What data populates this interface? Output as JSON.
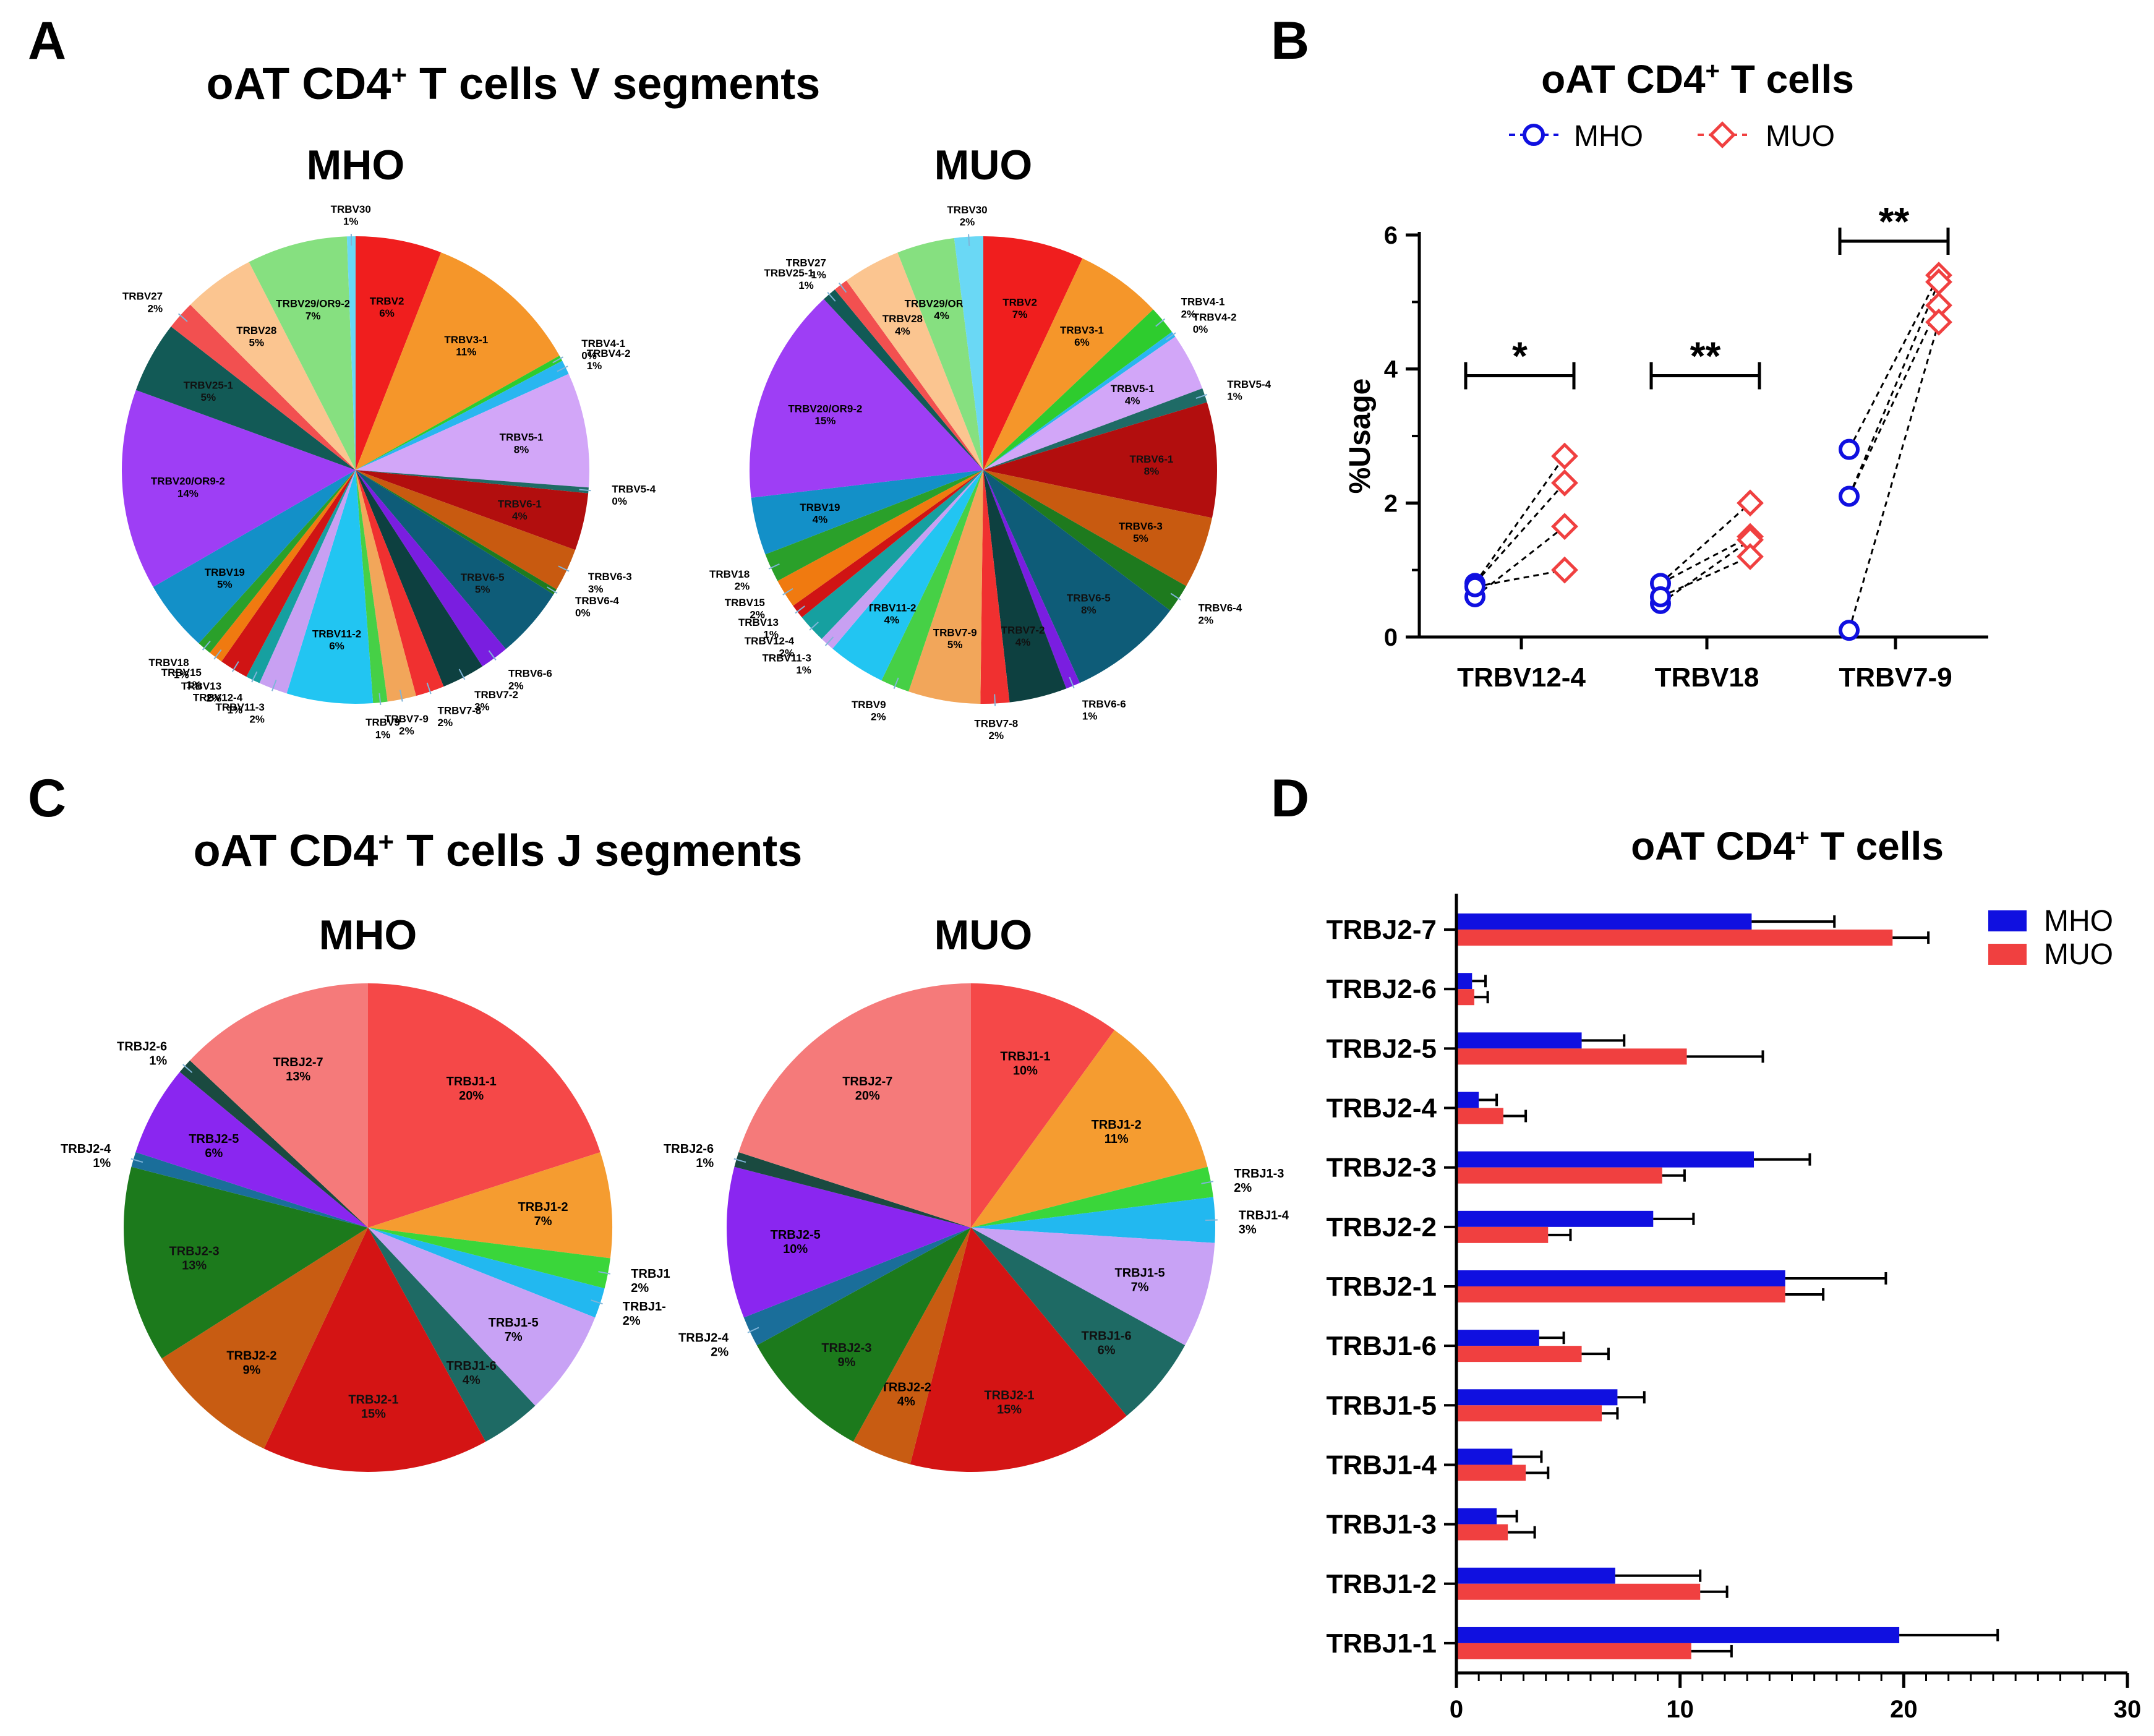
{
  "panels": {
    "A": {
      "label": "A",
      "title": "oAT CD4",
      "title_sup": "+",
      "title_rest": " T cells V segments"
    },
    "B": {
      "label": "B",
      "title": "oAT CD4",
      "title_sup": "+",
      "title_rest": " T cells"
    },
    "C": {
      "label": "C",
      "title": "oAT CD4",
      "title_sup": "+",
      "title_rest": " T cells J segments"
    },
    "D": {
      "label": "D",
      "title": "oAT CD4",
      "title_sup": "+",
      "title_rest": " T cells"
    }
  },
  "groups": {
    "mho": "MHO",
    "muo": "MUO"
  },
  "colors": {
    "mho": "#1010e0",
    "muo": "#f04040"
  },
  "chart_data": [
    {
      "id": "A-MHO",
      "type": "pie",
      "title": "MHO",
      "slices": [
        {
          "name": "TRBV2",
          "pct": "6%",
          "value": 6,
          "color": "#f01e1e"
        },
        {
          "name": "TRBV3-1",
          "pct": "11%",
          "value": 11,
          "color": "#f5962a"
        },
        {
          "name": "TRBV4-1",
          "pct": "0%",
          "value": 0.4,
          "color": "#2ecc2e"
        },
        {
          "name": "TRBV4-2",
          "pct": "1%",
          "value": 1,
          "color": "#29b6f0"
        },
        {
          "name": "TRBV5-1",
          "pct": "8%",
          "value": 8,
          "color": "#d2a6f8"
        },
        {
          "name": "TRBV5-4",
          "pct": "0%",
          "value": 0.4,
          "color": "#1f6b66"
        },
        {
          "name": "TRBV6-1",
          "pct": "4%",
          "value": 4,
          "color": "#b20e0e"
        },
        {
          "name": "TRBV6-3",
          "pct": "3%",
          "value": 3,
          "color": "#c85a10"
        },
        {
          "name": "TRBV6-4",
          "pct": "0%",
          "value": 0.4,
          "color": "#1e7a1e"
        },
        {
          "name": "TRBV6-5",
          "pct": "5%",
          "value": 5,
          "color": "#0e5c78"
        },
        {
          "name": "TRBV6-6",
          "pct": "2%",
          "value": 2,
          "color": "#7a1ee0"
        },
        {
          "name": "TRBV7-2",
          "pct": "3%",
          "value": 3,
          "color": "#0d4040"
        },
        {
          "name": "TRBV7-8",
          "pct": "2%",
          "value": 2,
          "color": "#f03030"
        },
        {
          "name": "TRBV7-9",
          "pct": "2%",
          "value": 2,
          "color": "#f2a65a"
        },
        {
          "name": "TRBV9",
          "pct": "1%",
          "value": 1,
          "color": "#46d046"
        },
        {
          "name": "TRBV11-2",
          "pct": "6%",
          "value": 6,
          "color": "#22c5f2"
        },
        {
          "name": "TRBV11-3",
          "pct": "2%",
          "value": 2,
          "color": "#c8a0f2"
        },
        {
          "name": "TRBV12-4",
          "pct": "1%",
          "value": 1,
          "color": "#16a0a0"
        },
        {
          "name": "TRBV13",
          "pct": "2%",
          "value": 2,
          "color": "#d01414"
        },
        {
          "name": "TRBV15",
          "pct": "1%",
          "value": 1,
          "color": "#f07a10"
        },
        {
          "name": "TRBV18",
          "pct": "1%",
          "value": 1,
          "color": "#2aa02a"
        },
        {
          "name": "TRBV19",
          "pct": "5%",
          "value": 5,
          "color": "#1390c8"
        },
        {
          "name": "TRBV20/OR9-2",
          "pct": "14%",
          "value": 14,
          "color": "#9e3ef5"
        },
        {
          "name": "TRBV25-1",
          "pct": "5%",
          "value": 5,
          "color": "#125a56"
        },
        {
          "name": "TRBV27",
          "pct": "2%",
          "value": 2,
          "color": "#f25050"
        },
        {
          "name": "TRBV28",
          "pct": "5%",
          "value": 5,
          "color": "#fbc590"
        },
        {
          "name": "TRBV29/OR9-2",
          "pct": "7%",
          "value": 7,
          "color": "#86e080"
        },
        {
          "name": "TRBV30",
          "pct": "1%",
          "value": 0.6,
          "color": "#6ad8f5"
        }
      ]
    },
    {
      "id": "A-MUO",
      "type": "pie",
      "title": "MUO",
      "slices": [
        {
          "name": "TRBV2",
          "pct": "7%",
          "value": 7,
          "color": "#f01e1e"
        },
        {
          "name": "TRBV3-1",
          "pct": "6%",
          "value": 6,
          "color": "#f5962a"
        },
        {
          "name": "TRBV4-1",
          "pct": "2%",
          "value": 2,
          "color": "#2ecc2e"
        },
        {
          "name": "TRBV4-2",
          "pct": "0%",
          "value": 0.4,
          "color": "#29b6f0"
        },
        {
          "name": "TRBV5-1",
          "pct": "4%",
          "value": 4,
          "color": "#d2a6f8"
        },
        {
          "name": "TRBV5-4",
          "pct": "1%",
          "value": 1,
          "color": "#1f6b66"
        },
        {
          "name": "TRBV6-1",
          "pct": "8%",
          "value": 8,
          "color": "#b20e0e"
        },
        {
          "name": "TRBV6-3",
          "pct": "5%",
          "value": 5,
          "color": "#c85a10"
        },
        {
          "name": "TRBV6-4",
          "pct": "2%",
          "value": 2,
          "color": "#1e7a1e"
        },
        {
          "name": "TRBV6-5",
          "pct": "8%",
          "value": 8,
          "color": "#0e5c78"
        },
        {
          "name": "TRBV6-6",
          "pct": "1%",
          "value": 1,
          "color": "#7a1ee0"
        },
        {
          "name": "TRBV7-2",
          "pct": "4%",
          "value": 4,
          "color": "#0d4040"
        },
        {
          "name": "TRBV7-8",
          "pct": "2%",
          "value": 2,
          "color": "#f03030"
        },
        {
          "name": "TRBV7-9",
          "pct": "5%",
          "value": 5,
          "color": "#f2a65a"
        },
        {
          "name": "TRBV9",
          "pct": "2%",
          "value": 2,
          "color": "#46d046"
        },
        {
          "name": "TRBV11-2",
          "pct": "4%",
          "value": 4,
          "color": "#22c5f2"
        },
        {
          "name": "TRBV11-3",
          "pct": "1%",
          "value": 1,
          "color": "#c8a0f2"
        },
        {
          "name": "TRBV12-4",
          "pct": "2%",
          "value": 2,
          "color": "#16a0a0"
        },
        {
          "name": "TRBV13",
          "pct": "1%",
          "value": 1,
          "color": "#d01414"
        },
        {
          "name": "TRBV15",
          "pct": "2%",
          "value": 2,
          "color": "#f07a10"
        },
        {
          "name": "TRBV18",
          "pct": "2%",
          "value": 2,
          "color": "#2aa02a"
        },
        {
          "name": "TRBV19",
          "pct": "4%",
          "value": 4,
          "color": "#1390c8"
        },
        {
          "name": "TRBV20/OR9-2",
          "pct": "15%",
          "value": 15,
          "color": "#9e3ef5"
        },
        {
          "name": "TRBV25-1",
          "pct": "1%",
          "value": 1,
          "color": "#125a56"
        },
        {
          "name": "TRBV27",
          "pct": "1%",
          "value": 1,
          "color": "#f25050"
        },
        {
          "name": "TRBV28",
          "pct": "4%",
          "value": 4,
          "color": "#fbc590"
        },
        {
          "name": "TRBV29/OR9-2",
          "pct": "4%",
          "value": 4,
          "color": "#86e080"
        },
        {
          "name": "TRBV30",
          "pct": "2%",
          "value": 2,
          "color": "#6ad8f5"
        }
      ]
    },
    {
      "id": "B",
      "type": "scatter",
      "title": "oAT CD4+ T cells",
      "xlabel": "",
      "ylabel": "%Usage",
      "ylim": [
        0,
        6
      ],
      "yticks": [
        0,
        2,
        4,
        6
      ],
      "categories": [
        "TRBV12-4",
        "TRBV18",
        "TRBV7-9"
      ],
      "series": [
        {
          "name": "MHO",
          "values": [
            [
              0.8,
              0.6,
              0.75
            ],
            [
              0.8,
              0.5,
              0.6
            ],
            [
              2.8,
              2.1,
              0.1
            ]
          ]
        },
        {
          "name": "MUO",
          "values": [
            [
              2.7,
              2.3,
              1.65,
              1.0
            ],
            [
              2.0,
              1.5,
              1.45,
              1.2
            ],
            [
              5.4,
              5.3,
              4.95,
              4.7
            ]
          ]
        }
      ],
      "pairs": [
        [
          [
            0,
            0
          ],
          [
            0,
            1
          ],
          [
            1,
            2
          ],
          [
            2,
            3
          ]
        ],
        [
          [
            0,
            0
          ],
          [
            0,
            1
          ],
          [
            1,
            2
          ],
          [
            2,
            3
          ]
        ],
        [
          [
            0,
            0
          ],
          [
            1,
            1
          ],
          [
            1,
            2
          ],
          [
            2,
            3
          ]
        ]
      ],
      "significance": [
        "*",
        "**",
        "**"
      ]
    },
    {
      "id": "C-MHO",
      "type": "pie",
      "title": "MHO",
      "slices": [
        {
          "name": "TRBJ1-1",
          "pct": "20%",
          "value": 20,
          "color": "#f54848"
        },
        {
          "name": "TRBJ1-2",
          "pct": "7%",
          "value": 7,
          "color": "#f59c30"
        },
        {
          "name": "TRBJ1",
          "pct": "2%",
          "value": 2,
          "color": "#3ad63a"
        },
        {
          "name": "TRBJ1-",
          "pct": "2%",
          "value": 2,
          "color": "#22b8f0"
        },
        {
          "name": "TRBJ1-5",
          "pct": "7%",
          "value": 7,
          "color": "#c8a2f5"
        },
        {
          "name": "TRBJ1-6",
          "pct": "4%",
          "value": 4,
          "color": "#1e6a64"
        },
        {
          "name": "TRBJ2-1",
          "pct": "15%",
          "value": 15,
          "color": "#d41414"
        },
        {
          "name": "TRBJ2-2",
          "pct": "9%",
          "value": 9,
          "color": "#c85c12"
        },
        {
          "name": "TRBJ2-3",
          "pct": "13%",
          "value": 13,
          "color": "#1c7a1c"
        },
        {
          "name": "TRBJ2-4",
          "pct": "1%",
          "value": 1,
          "color": "#1a6e9a"
        },
        {
          "name": "TRBJ2-5",
          "pct": "6%",
          "value": 6,
          "color": "#8a26f0"
        },
        {
          "name": "TRBJ2-6",
          "pct": "1%",
          "value": 1,
          "color": "#1a4a40"
        },
        {
          "name": "TRBJ2-7",
          "pct": "13%",
          "value": 13,
          "color": "#f57a7a"
        }
      ]
    },
    {
      "id": "C-MUO",
      "type": "pie",
      "title": "MUO",
      "slices": [
        {
          "name": "TRBJ1-1",
          "pct": "10%",
          "value": 10,
          "color": "#f54848"
        },
        {
          "name": "TRBJ1-2",
          "pct": "11%",
          "value": 11,
          "color": "#f59c30"
        },
        {
          "name": "TRBJ1-3",
          "pct": "2%",
          "value": 2,
          "color": "#3ad63a"
        },
        {
          "name": "TRBJ1-4",
          "pct": "3%",
          "value": 3,
          "color": "#22b8f0"
        },
        {
          "name": "TRBJ1-5",
          "pct": "7%",
          "value": 7,
          "color": "#c8a2f5"
        },
        {
          "name": "TRBJ1-6",
          "pct": "6%",
          "value": 6,
          "color": "#1e6a64"
        },
        {
          "name": "TRBJ2-1",
          "pct": "15%",
          "value": 15,
          "color": "#d41414"
        },
        {
          "name": "TRBJ2-2",
          "pct": "4%",
          "value": 4,
          "color": "#c85c12"
        },
        {
          "name": "TRBJ2-3",
          "pct": "9%",
          "value": 9,
          "color": "#1c7a1c"
        },
        {
          "name": "TRBJ2-4",
          "pct": "2%",
          "value": 2,
          "color": "#1a6e9a"
        },
        {
          "name": "TRBJ2-5",
          "pct": "10%",
          "value": 10,
          "color": "#8a26f0"
        },
        {
          "name": "TRBJ2-6",
          "pct": "1%",
          "value": 1,
          "color": "#1a4a40"
        },
        {
          "name": "TRBJ2-7",
          "pct": "20%",
          "value": 20,
          "color": "#f57a7a"
        }
      ]
    },
    {
      "id": "D",
      "type": "bar",
      "orientation": "horizontal",
      "title": "oAT CD4+ T cells",
      "xlim": [
        0,
        30
      ],
      "xticks": [
        0,
        10,
        20,
        30
      ],
      "categories": [
        "TRBJ2-7",
        "TRBJ2-6",
        "TRBJ2-5",
        "TRBJ2-4",
        "TRBJ2-3",
        "TRBJ2-2",
        "TRBJ2-1",
        "TRBJ1-6",
        "TRBJ1-5",
        "TRBJ1-4",
        "TRBJ1-3",
        "TRBJ1-2",
        "TRBJ1-1"
      ],
      "series": [
        {
          "name": "MHO",
          "values": [
            13.2,
            0.7,
            5.6,
            1.0,
            13.3,
            8.8,
            14.7,
            3.7,
            7.2,
            2.5,
            1.8,
            7.1,
            19.8
          ],
          "errors": [
            3.7,
            0.6,
            1.9,
            0.8,
            2.5,
            1.8,
            4.5,
            1.1,
            1.2,
            1.3,
            0.9,
            3.8,
            4.4
          ]
        },
        {
          "name": "MUO",
          "values": [
            19.5,
            0.8,
            10.3,
            2.1,
            9.2,
            4.1,
            14.7,
            5.6,
            6.5,
            3.1,
            2.3,
            10.9,
            10.5
          ],
          "errors": [
            1.6,
            0.6,
            3.4,
            1.0,
            1.0,
            1.0,
            1.7,
            1.2,
            0.7,
            1.0,
            1.2,
            1.2,
            1.8
          ]
        }
      ]
    }
  ]
}
